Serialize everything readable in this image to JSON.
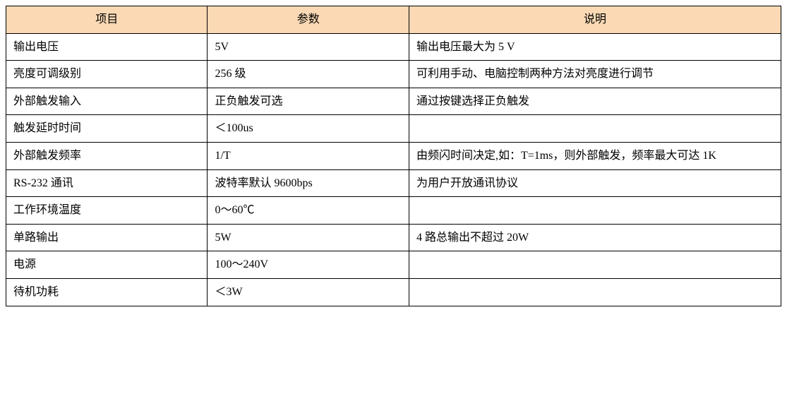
{
  "table": {
    "columns": [
      {
        "label": "项目",
        "width": "26%",
        "align": "center"
      },
      {
        "label": "参数",
        "width": "26%",
        "align": "center"
      },
      {
        "label": "说明",
        "width": "48%",
        "align": "center"
      }
    ],
    "header_bg_color": "#fad9b4",
    "border_color": "#000000",
    "font_family": "SimSun",
    "font_size": 16,
    "text_color": "#000000",
    "background_color": "#ffffff",
    "rows": [
      {
        "item": "输出电压",
        "param": "5V",
        "desc": "输出电压最大为 5 V"
      },
      {
        "item": "亮度可调级别",
        "param": "256 级",
        "desc": "可利用手动、电脑控制两种方法对亮度进行调节"
      },
      {
        "item": "外部触发输入",
        "param": "正负触发可选",
        "desc": "通过按键选择正负触发"
      },
      {
        "item": "触发延时时间",
        "param": "＜100us",
        "desc": ""
      },
      {
        "item": "外部触发频率",
        "param": "1/T",
        "desc": "由频闪时间决定,如：T=1ms，则外部触发，频率最大可达 1K"
      },
      {
        "item": "RS-232 通讯",
        "param": "波特率默认 9600bps",
        "desc": "为用户开放通讯协议"
      },
      {
        "item": "工作环境温度",
        "param": "0～60℃",
        "desc": ""
      },
      {
        "item": "单路输出",
        "param": "5W",
        "desc": "4 路总输出不超过 20W"
      },
      {
        "item": "电源",
        "param": "100～240V",
        "desc": ""
      },
      {
        "item": "待机功耗",
        "param": "＜3W",
        "desc": ""
      }
    ]
  }
}
